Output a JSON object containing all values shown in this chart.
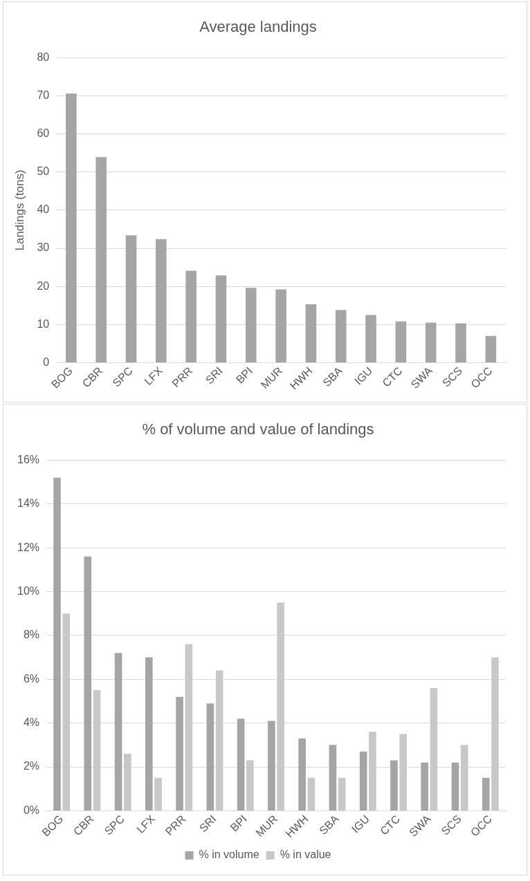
{
  "chart_data": [
    {
      "type": "bar",
      "title": "Average landings",
      "ylabel": "Landings (tons)",
      "categories": [
        "BOG",
        "CBR",
        "SPC",
        "LFX",
        "PRR",
        "SRI",
        "BPI",
        "MUR",
        "HWH",
        "SBA",
        "IGU",
        "CTC",
        "SWA",
        "SCS",
        "OCC"
      ],
      "series": [
        {
          "color": "#a5a5a5",
          "values": [
            70.6,
            53.9,
            33.4,
            32.4,
            24.1,
            22.9,
            19.6,
            19.2,
            15.3,
            13.8,
            12.5,
            10.8,
            10.5,
            10.3,
            7.0
          ]
        }
      ],
      "ylim": [
        0,
        80
      ],
      "yticks": [
        0,
        10,
        20,
        30,
        40,
        50,
        60,
        70,
        80
      ],
      "grid": "y",
      "legend": false
    },
    {
      "type": "bar",
      "title": "% of volume and value of landings",
      "categories": [
        "BOG",
        "CBR",
        "SPC",
        "LFX",
        "PRR",
        "SRI",
        "BPI",
        "MUR",
        "HWH",
        "SBA",
        "IGU",
        "CTC",
        "SWA",
        "SCS",
        "OCC"
      ],
      "series": [
        {
          "name": "% in volume",
          "color": "#a5a5a5",
          "values": [
            15.2,
            11.6,
            7.2,
            7.0,
            5.2,
            4.9,
            4.2,
            4.1,
            3.3,
            3.0,
            2.7,
            2.3,
            2.2,
            2.2,
            1.5
          ]
        },
        {
          "name": "% in value",
          "color": "#c8c8c8",
          "values": [
            9.0,
            5.5,
            2.6,
            1.5,
            7.6,
            6.4,
            2.3,
            9.5,
            1.5,
            1.5,
            3.6,
            3.5,
            5.6,
            3.0,
            7.0
          ]
        }
      ],
      "ylim": [
        0,
        16
      ],
      "yticks": [
        {
          "value": 0,
          "label": "0%"
        },
        {
          "value": 2,
          "label": "2%"
        },
        {
          "value": 4,
          "label": "4%"
        },
        {
          "value": 6,
          "label": "6%"
        },
        {
          "value": 8,
          "label": "8%"
        },
        {
          "value": 10,
          "label": "10%"
        },
        {
          "value": 12,
          "label": "12%"
        },
        {
          "value": 14,
          "label": "14%"
        },
        {
          "value": 16,
          "label": "16%"
        }
      ],
      "grid": "y",
      "legend": "bottom"
    }
  ]
}
